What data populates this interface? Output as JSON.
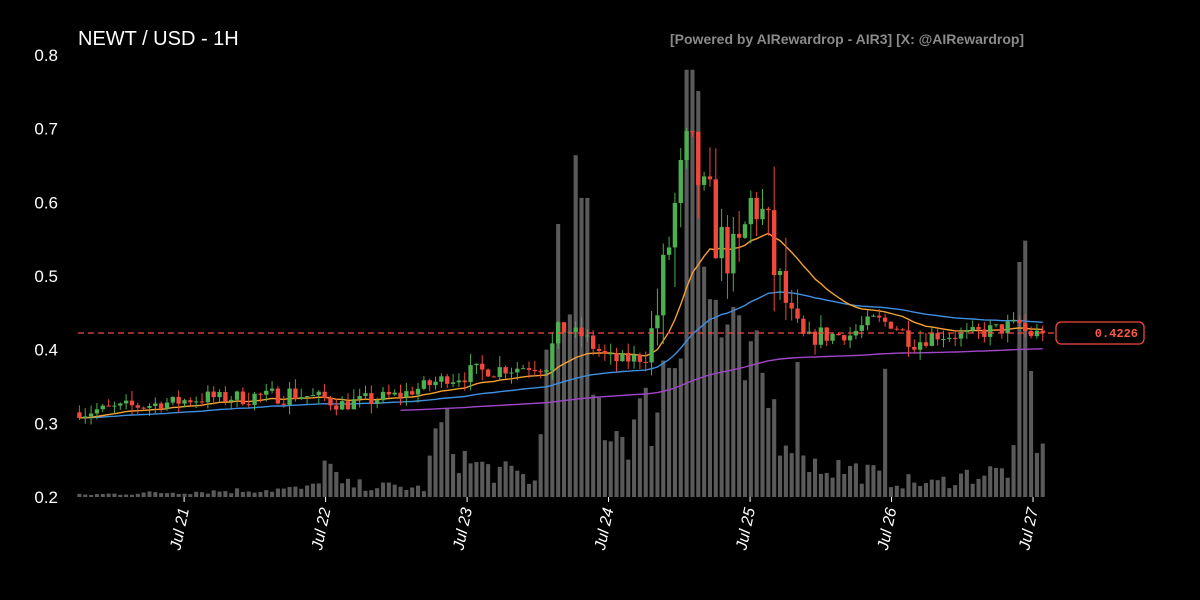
{
  "header": {
    "title": "NEWT / USD - 1H",
    "credit": "[Powered by AIRewardrop - AIR3] [X: @AIRewardrop]"
  },
  "colors": {
    "background": "#000000",
    "up": "#4caf50",
    "down": "#f0483c",
    "volume": "#5a5a5a",
    "ema_fast": "#f5a033",
    "ema_mid": "#3f8fe0",
    "ema_slow": "#a046c8",
    "last_price": "#f0483c"
  },
  "chart_data": {
    "type": "candlestick",
    "title": "NEWT / USD - 1H",
    "xlabel": "",
    "ylabel": "",
    "ylim": [
      0.2,
      0.8
    ],
    "yticks": [
      "0.2",
      "0.3",
      "0.4",
      "0.5",
      "0.6",
      "0.7",
      "0.8"
    ],
    "xticks": [
      "Jul 21",
      "Jul 22",
      "Jul 23",
      "Jul 24",
      "Jul 25",
      "Jul 26",
      "Jul 27"
    ],
    "x_day_positions": [
      0.5,
      1.5,
      2.5,
      3.5,
      4.5,
      5.5,
      6.5
    ],
    "x_range_days": [
      -0.25,
      6.62
    ],
    "grid": false,
    "last_price": 0.4226,
    "last_price_label": "0.4226",
    "price_keypoints": [
      [
        -0.25,
        0.315
      ],
      [
        0.3,
        0.325
      ],
      [
        0.7,
        0.335
      ],
      [
        1.0,
        0.336
      ],
      [
        1.3,
        0.34
      ],
      [
        1.5,
        0.335
      ],
      [
        1.65,
        0.325
      ],
      [
        1.85,
        0.332
      ],
      [
        2.1,
        0.34
      ],
      [
        2.4,
        0.362
      ],
      [
        2.7,
        0.372
      ],
      [
        3.0,
        0.378
      ],
      [
        3.1,
        0.38
      ],
      [
        3.2,
        0.43
      ],
      [
        3.35,
        0.42
      ],
      [
        3.55,
        0.385
      ],
      [
        3.8,
        0.39
      ],
      [
        3.9,
        0.46
      ],
      [
        4.0,
        0.58
      ],
      [
        4.1,
        0.68
      ],
      [
        4.2,
        0.62
      ],
      [
        4.35,
        0.54
      ],
      [
        4.45,
        0.52
      ],
      [
        4.55,
        0.6
      ],
      [
        4.65,
        0.58
      ],
      [
        4.7,
        0.52
      ],
      [
        4.8,
        0.46
      ],
      [
        4.9,
        0.41
      ],
      [
        5.05,
        0.42
      ],
      [
        5.25,
        0.42
      ],
      [
        5.4,
        0.44
      ],
      [
        5.55,
        0.435
      ],
      [
        5.7,
        0.41
      ],
      [
        5.85,
        0.42
      ],
      [
        6.1,
        0.42
      ],
      [
        6.35,
        0.43
      ],
      [
        6.45,
        0.435
      ],
      [
        6.5,
        0.42
      ],
      [
        6.6,
        0.4226
      ]
    ],
    "volume_keypoints": [
      [
        -0.25,
        0.005
      ],
      [
        1.4,
        0.02
      ],
      [
        1.5,
        0.08
      ],
      [
        1.6,
        0.03
      ],
      [
        2.2,
        0.02
      ],
      [
        2.3,
        0.17
      ],
      [
        2.5,
        0.08
      ],
      [
        2.7,
        0.06
      ],
      [
        2.9,
        0.05
      ],
      [
        3.0,
        0.03
      ],
      [
        3.05,
        0.3
      ],
      [
        3.1,
        0.6
      ],
      [
        3.2,
        0.3
      ],
      [
        3.4,
        0.22
      ],
      [
        3.5,
        0.18
      ],
      [
        3.6,
        0.15
      ],
      [
        3.8,
        0.2
      ],
      [
        3.9,
        0.3
      ],
      [
        4.0,
        0.4
      ],
      [
        4.1,
        0.5
      ],
      [
        4.25,
        0.45
      ],
      [
        4.4,
        0.3
      ],
      [
        4.6,
        0.25
      ],
      [
        4.75,
        0.15
      ],
      [
        4.85,
        0.25
      ],
      [
        4.9,
        0.08
      ],
      [
        5.3,
        0.06
      ],
      [
        5.5,
        0.04
      ],
      [
        5.8,
        0.03
      ],
      [
        6.0,
        0.05
      ],
      [
        6.3,
        0.06
      ],
      [
        6.4,
        0.1
      ],
      [
        6.45,
        0.35
      ],
      [
        6.5,
        0.2
      ],
      [
        6.6,
        0.04
      ]
    ],
    "volume_spikes": [
      [
        3.28,
        0.8
      ],
      [
        3.33,
        0.7
      ],
      [
        4.07,
        1.0
      ],
      [
        4.12,
        0.95
      ],
      [
        5.47,
        0.3
      ],
      [
        6.4,
        0.55
      ],
      [
        6.46,
        0.6
      ]
    ],
    "ema_fast_period": 20,
    "ema_mid_period": 60,
    "ema_slow_period": 200,
    "ema_slow_start_day": 2.0,
    "candle_count": 166
  }
}
